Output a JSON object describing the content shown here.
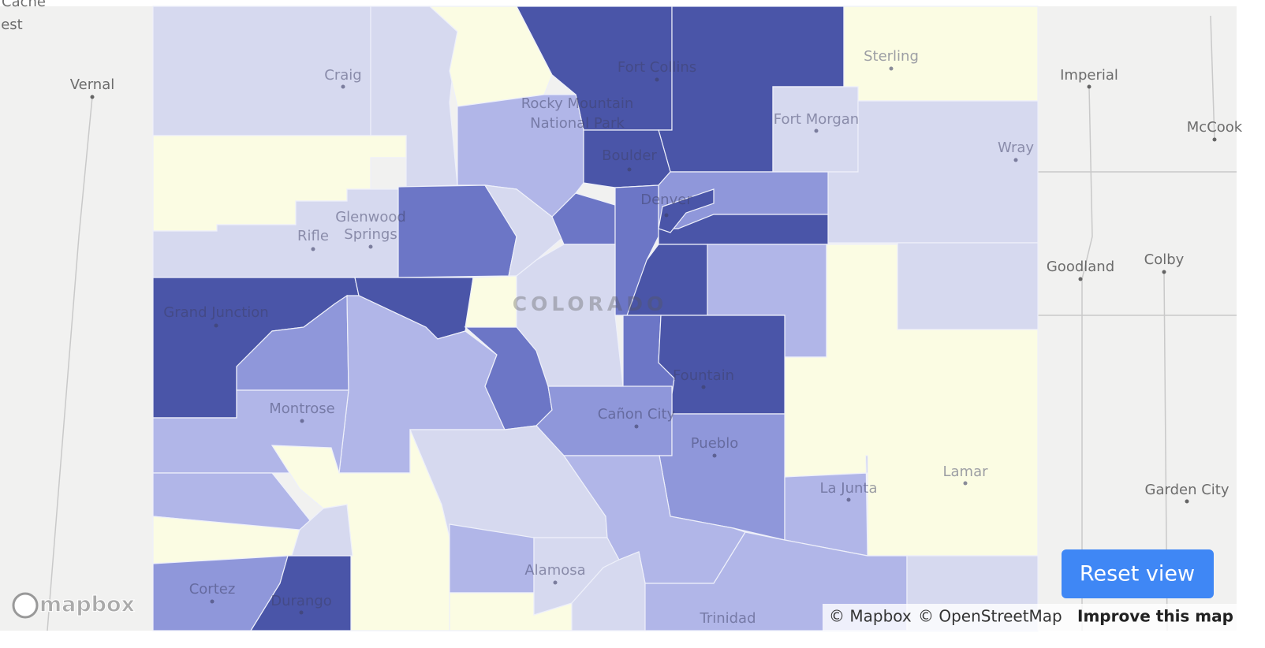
{
  "map": {
    "places": [
      "Cache",
      "est",
      "Vernal",
      "Imperial",
      "McCook",
      "Goodland",
      "Colby",
      "Garden City",
      "Craig",
      "Sterling",
      "Fort Collins",
      "Rocky Mountain",
      "National Park",
      "Fort Morgan",
      "Wray",
      "Boulder",
      "Denver",
      "Glenwood",
      "Springs",
      "Rifle",
      "Grand Junction",
      "Fountain",
      "Montrose",
      "Cañon City",
      "Pueblo",
      "Lamar",
      "La Junta",
      "Cortez",
      "Durango",
      "Alamosa",
      "Trinidad"
    ],
    "region_label": "COLORADO"
  },
  "logo": "mapbox",
  "attribution": [
    "© Mapbox",
    "© OpenStreetMap",
    "Improve this map"
  ],
  "button": "Reset view"
}
